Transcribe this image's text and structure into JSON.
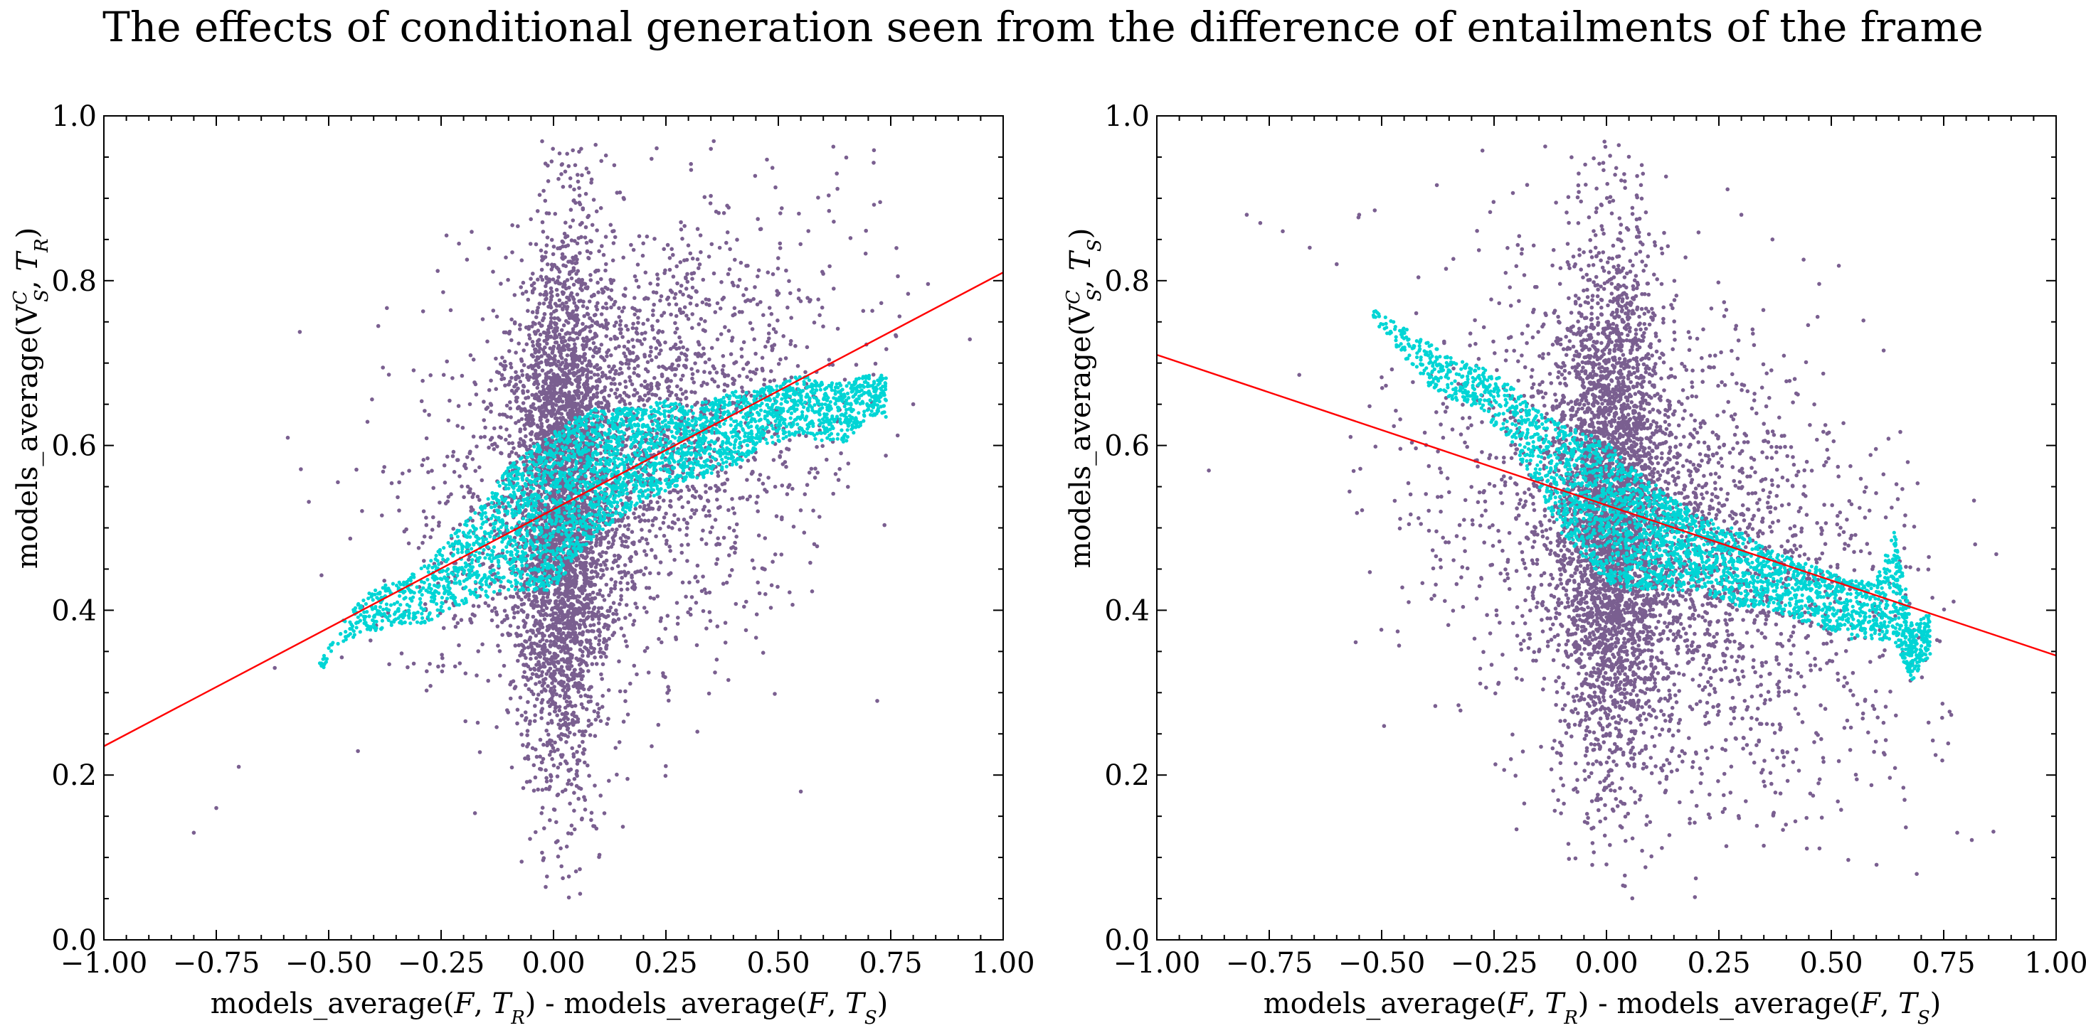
{
  "suptitle": "The effects of conditional generation seen from the difference of entailments of the frame",
  "chart_data": [
    {
      "type": "scatter",
      "xlabel_text": "models_average(F, T_R) - models_average(F, T_S)",
      "ylabel_text": "models_average(V_S^C, T_R)",
      "xlim": [
        -1.0,
        1.0
      ],
      "ylim": [
        0.0,
        1.0
      ],
      "xticks": [
        -1.0,
        -0.75,
        -0.5,
        -0.25,
        0.0,
        0.25,
        0.5,
        0.75,
        1.0
      ],
      "xtick_labels": [
        "−1.00",
        "−0.75",
        "−0.50",
        "−0.25",
        "0.00",
        "0.25",
        "0.50",
        "0.75",
        "1.00"
      ],
      "yticks": [
        0.0,
        0.2,
        0.4,
        0.6,
        0.8,
        1.0
      ],
      "ytick_labels": [
        "0.0",
        "0.2",
        "0.4",
        "0.6",
        "0.8",
        "1.0"
      ],
      "grid": false,
      "scatter_color": "#7a5f90",
      "rolling_color": "#00d5d5",
      "fit_color": "#ff0000",
      "fit_line": {
        "x": [
          -1.0,
          1.0
        ],
        "y": [
          0.235,
          0.81
        ]
      },
      "scatter_distribution": {
        "core": {
          "x_mean": 0.02,
          "x_sd": 0.05,
          "y_mean": 0.52,
          "y_sd": 0.17
        },
        "spread": {
          "x_mean": 0.15,
          "x_sd": 0.22,
          "y_mean": 0.56,
          "y_sd": 0.13,
          "slope": 0.22
        },
        "outliers": [
          [
            -0.8,
            0.13
          ],
          [
            -0.75,
            0.16
          ],
          [
            -0.7,
            0.21
          ],
          [
            -0.62,
            0.33
          ],
          [
            0.35,
            0.96
          ],
          [
            0.63,
            0.93
          ],
          [
            0.8,
            0.65
          ],
          [
            0.72,
            0.29
          ],
          [
            0.55,
            0.18
          ]
        ]
      },
      "rolling_mean": {
        "x": [
          -0.52,
          -0.46,
          -0.4,
          -0.34,
          -0.28,
          -0.22,
          -0.16,
          -0.1,
          -0.05,
          0.0,
          0.05,
          0.1,
          0.15,
          0.2,
          0.25,
          0.3,
          0.35,
          0.4,
          0.45,
          0.5,
          0.55,
          0.6,
          0.65,
          0.7,
          0.74
        ],
        "y": [
          0.33,
          0.38,
          0.4,
          0.41,
          0.42,
          0.45,
          0.47,
          0.5,
          0.51,
          0.52,
          0.55,
          0.57,
          0.58,
          0.59,
          0.6,
          0.6,
          0.61,
          0.62,
          0.63,
          0.64,
          0.65,
          0.64,
          0.64,
          0.66,
          0.66
        ],
        "band": [
          0.0,
          0.01,
          0.02,
          0.02,
          0.03,
          0.04,
          0.05,
          0.07,
          0.08,
          0.09,
          0.08,
          0.07,
          0.06,
          0.05,
          0.05,
          0.04,
          0.04,
          0.04,
          0.03,
          0.03,
          0.03,
          0.03,
          0.03,
          0.02,
          0.02
        ]
      }
    },
    {
      "type": "scatter",
      "xlabel_text": "models_average(F, T_R) - models_average(F, T_S)",
      "ylabel_text": "models_average(V_S^C, T_S)",
      "xlim": [
        -1.0,
        1.0
      ],
      "ylim": [
        0.0,
        1.0
      ],
      "xticks": [
        -1.0,
        -0.75,
        -0.5,
        -0.25,
        0.0,
        0.25,
        0.5,
        0.75,
        1.0
      ],
      "xtick_labels": [
        "−1.00",
        "−0.75",
        "−0.50",
        "−0.25",
        "0.00",
        "0.25",
        "0.50",
        "0.75",
        "1.00"
      ],
      "yticks": [
        0.0,
        0.2,
        0.4,
        0.6,
        0.8,
        1.0
      ],
      "ytick_labels": [
        "0.0",
        "0.2",
        "0.4",
        "0.6",
        "0.8",
        "1.0"
      ],
      "grid": false,
      "scatter_color": "#7a5f90",
      "rolling_color": "#00d5d5",
      "fit_color": "#ff0000",
      "fit_line": {
        "x": [
          -1.0,
          1.0
        ],
        "y": [
          0.71,
          0.345
        ]
      },
      "scatter_distribution": {
        "core": {
          "x_mean": 0.01,
          "x_sd": 0.06,
          "y_mean": 0.53,
          "y_sd": 0.17
        },
        "spread": {
          "x_mean": 0.12,
          "x_sd": 0.25,
          "y_mean": 0.5,
          "y_sd": 0.14,
          "slope": -0.2
        },
        "outliers": [
          [
            -0.8,
            0.88
          ],
          [
            -0.77,
            0.87
          ],
          [
            -0.72,
            0.86
          ],
          [
            -0.66,
            0.84
          ],
          [
            -0.6,
            0.82
          ],
          [
            -0.55,
            0.88
          ],
          [
            0.3,
            0.88
          ],
          [
            0.78,
            0.13
          ],
          [
            0.69,
            0.08
          ],
          [
            0.82,
            0.48
          ]
        ]
      },
      "rolling_mean": {
        "x": [
          -0.52,
          -0.46,
          -0.4,
          -0.34,
          -0.28,
          -0.22,
          -0.16,
          -0.1,
          -0.05,
          0.0,
          0.05,
          0.1,
          0.15,
          0.2,
          0.25,
          0.3,
          0.35,
          0.4,
          0.45,
          0.5,
          0.55,
          0.6,
          0.64,
          0.68,
          0.72
        ],
        "y": [
          0.76,
          0.73,
          0.7,
          0.68,
          0.67,
          0.64,
          0.6,
          0.56,
          0.54,
          0.52,
          0.5,
          0.49,
          0.48,
          0.47,
          0.46,
          0.45,
          0.44,
          0.43,
          0.42,
          0.41,
          0.4,
          0.4,
          0.43,
          0.35,
          0.37
        ],
        "band": [
          0.0,
          0.01,
          0.02,
          0.02,
          0.02,
          0.03,
          0.04,
          0.06,
          0.07,
          0.08,
          0.07,
          0.06,
          0.05,
          0.04,
          0.04,
          0.04,
          0.03,
          0.03,
          0.03,
          0.03,
          0.03,
          0.03,
          0.06,
          0.03,
          0.02
        ]
      }
    }
  ]
}
